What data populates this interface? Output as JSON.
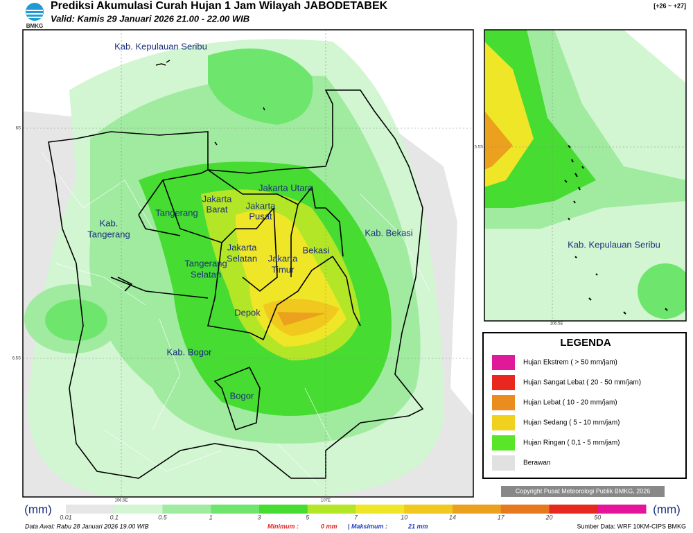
{
  "header": {
    "logo": "BMKG",
    "title": "Prediksi Akumulasi Curah Hujan 1 Jam Wilayah JABODETABEK",
    "valid": "Valid: Kamis 29 Januari 2026 21.00 - 22.00 WIB",
    "range": "[+26 ~ +27]"
  },
  "map": {
    "labels": [
      "Kab. Kepulauan Seribu",
      "Kab.",
      "Tangerang",
      "Tangerang",
      "Jakarta",
      "Barat",
      "Jakarta",
      "Pusat",
      "Jakarta Utara",
      "Jakarta",
      "Selatan",
      "Jakarta",
      "Timur",
      "Tangerang",
      "Selatan",
      "Bekasi",
      "Kab. Bekasi",
      "Depok",
      "Kab. Bogor",
      "Bogor"
    ],
    "axis": [
      "6S",
      "6.5S",
      "106.5E",
      "107E"
    ]
  },
  "inset": {
    "label": "Kab. Kepulauan Seribu",
    "axis": [
      "5.5S",
      "106.5E"
    ]
  },
  "legend": {
    "title": "LEGENDA",
    "items": [
      {
        "label": "Hujan Ekstrem ( > 50 mm/jam)",
        "color": "#e0199a"
      },
      {
        "label": "Hujan Sangat Lebat ( 20 - 50 mm/jam)",
        "color": "#e8281e"
      },
      {
        "label": "Hujan Lebat ( 10 - 20 mm/jam)",
        "color": "#eb8c1e"
      },
      {
        "label": "Hujan Sedang ( 5 - 10 mm/jam)",
        "color": "#f0d21e"
      },
      {
        "label": "Hujan Ringan ( 0,1 - 5 mm/jam)",
        "color": "#5ae628"
      },
      {
        "label": "Berawan",
        "color": "#e1e1e1"
      }
    ]
  },
  "copyright": "Copyright Pusat Meteorologi Publik BMKG, 2026",
  "colorbar": {
    "unit": "(mm)",
    "ticks": [
      "0.01",
      "0.1",
      "0.5",
      "1",
      "3",
      "5",
      "7",
      "10",
      "14",
      "17",
      "20",
      "50"
    ],
    "colors": [
      "#e6e6e6",
      "#d2f5d2",
      "#a0eba0",
      "#6ee66e",
      "#46dc32",
      "#b4e628",
      "#f0e628",
      "#f0c81e",
      "#eba01e",
      "#e6781e",
      "#e6281e",
      "#e6149b"
    ]
  },
  "footer": {
    "initial": "Data Awal: Rabu 28 Januari 2026 19.00 WIB",
    "min_label": "Minimum :",
    "min_value": "0 mm",
    "max_label": "| Maksimum :",
    "max_value": "21 mm",
    "source": "Sumber Data: WRF 10KM-CIPS BMKG"
  }
}
